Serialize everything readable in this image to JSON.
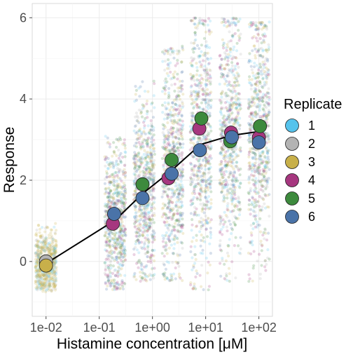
{
  "chart_data": {
    "type": "scatter",
    "xlabel": "Histamine concentration [μM]",
    "ylabel": "Response",
    "x_scale": "log10",
    "x_ticks": [
      0.01,
      0.1,
      1,
      10,
      100
    ],
    "x_tick_labels": [
      "1e-02",
      "1e-01",
      "1e+00",
      "1e+01",
      "1e+02"
    ],
    "xlim": [
      0.0055,
      180
    ],
    "y_ticks": [
      0,
      2,
      4,
      6
    ],
    "y_tick_labels": [
      "0",
      "2",
      "4",
      "6"
    ],
    "ylim": [
      -1.35,
      6.35
    ],
    "grid": true,
    "legend": {
      "title": "Replicate",
      "placement": "right",
      "entries": [
        {
          "label": "1",
          "color": "#56c3ec"
        },
        {
          "label": "2",
          "color": "#b3b3b3"
        },
        {
          "label": "3",
          "color": "#c8b04a"
        },
        {
          "label": "4",
          "color": "#a6377f"
        },
        {
          "label": "5",
          "color": "#3d8a3d"
        },
        {
          "label": "6",
          "color": "#4a73a8"
        }
      ]
    },
    "replicate_means": [
      {
        "name": "2",
        "color": "#b3b3b3",
        "points": [
          {
            "x": 0.01,
            "y": 0.0
          }
        ]
      },
      {
        "name": "3",
        "color": "#c8b04a",
        "points": [
          {
            "x": 0.01,
            "y": -0.1
          }
        ]
      },
      {
        "name": "4",
        "color": "#a6377f",
        "points": [
          {
            "x": 0.18,
            "y": 0.93
          },
          {
            "x": 2.0,
            "y": 2.05
          },
          {
            "x": 7.6,
            "y": 3.27
          },
          {
            "x": 30,
            "y": 3.17
          },
          {
            "x": 100,
            "y": 3.05
          }
        ]
      },
      {
        "name": "5",
        "color": "#3d8a3d",
        "points": [
          {
            "x": 0.65,
            "y": 1.9
          },
          {
            "x": 2.3,
            "y": 2.5
          },
          {
            "x": 8.3,
            "y": 3.52
          },
          {
            "x": 29,
            "y": 2.96
          },
          {
            "x": 105,
            "y": 3.33
          }
        ]
      },
      {
        "name": "6",
        "color": "#4a73a8",
        "points": [
          {
            "x": 0.19,
            "y": 1.17
          },
          {
            "x": 0.65,
            "y": 1.56
          },
          {
            "x": 2.3,
            "y": 2.16
          },
          {
            "x": 7.8,
            "y": 2.74
          },
          {
            "x": 31,
            "y": 3.06
          },
          {
            "x": 100,
            "y": 2.93
          }
        ]
      }
    ],
    "fit_curve": {
      "color": "#000000",
      "x": [
        0.01,
        0.2,
        0.65,
        2.2,
        8,
        30,
        100
      ],
      "y": [
        -0.05,
        1.02,
        1.67,
        2.22,
        2.88,
        3.1,
        3.2
      ]
    },
    "raw_clusters": [
      {
        "x": 0.01,
        "y_min": -0.75,
        "y_max": 0.95,
        "y_center": -0.05,
        "count": 650,
        "colors": [
          "#c8b04a",
          "#c8b04a",
          "#c8b04a",
          "#56c3ec",
          "#b3b3b3"
        ]
      },
      {
        "x": 0.1995,
        "y_min": -0.7,
        "y_max": 3.1,
        "y_center": 1.0,
        "count": 650,
        "colors": [
          "#56c3ec",
          "#b3b3b3",
          "#c8b04a",
          "#a6377f",
          "#3d8a3d",
          "#4a73a8"
        ]
      },
      {
        "x": 0.6998,
        "y_min": -0.5,
        "y_max": 4.5,
        "y_center": 1.75,
        "count": 650,
        "colors": [
          "#56c3ec",
          "#b3b3b3",
          "#c8b04a",
          "#a6377f",
          "#3d8a3d",
          "#4a73a8"
        ]
      },
      {
        "x": 2.4,
        "y_min": -0.5,
        "y_max": 5.3,
        "y_center": 2.3,
        "count": 650,
        "colors": [
          "#56c3ec",
          "#b3b3b3",
          "#c8b04a",
          "#a6377f",
          "#3d8a3d",
          "#4a73a8"
        ]
      },
      {
        "x": 8.1,
        "y_min": -0.7,
        "y_max": 6.0,
        "y_center": 3.0,
        "count": 650,
        "colors": [
          "#56c3ec",
          "#b3b3b3",
          "#c8b04a",
          "#a6377f",
          "#3d8a3d",
          "#4a73a8"
        ]
      },
      {
        "x": 28.9,
        "y_min": -0.5,
        "y_max": 6.0,
        "y_center": 3.1,
        "count": 650,
        "colors": [
          "#56c3ec",
          "#b3b3b3",
          "#c8b04a",
          "#a6377f",
          "#3d8a3d",
          "#4a73a8"
        ]
      },
      {
        "x": 100,
        "y_min": -0.5,
        "y_max": 5.9,
        "y_center": 3.2,
        "count": 650,
        "colors": [
          "#56c3ec",
          "#b3b3b3",
          "#c8b04a",
          "#a6377f",
          "#3d8a3d",
          "#4a73a8"
        ]
      }
    ]
  }
}
